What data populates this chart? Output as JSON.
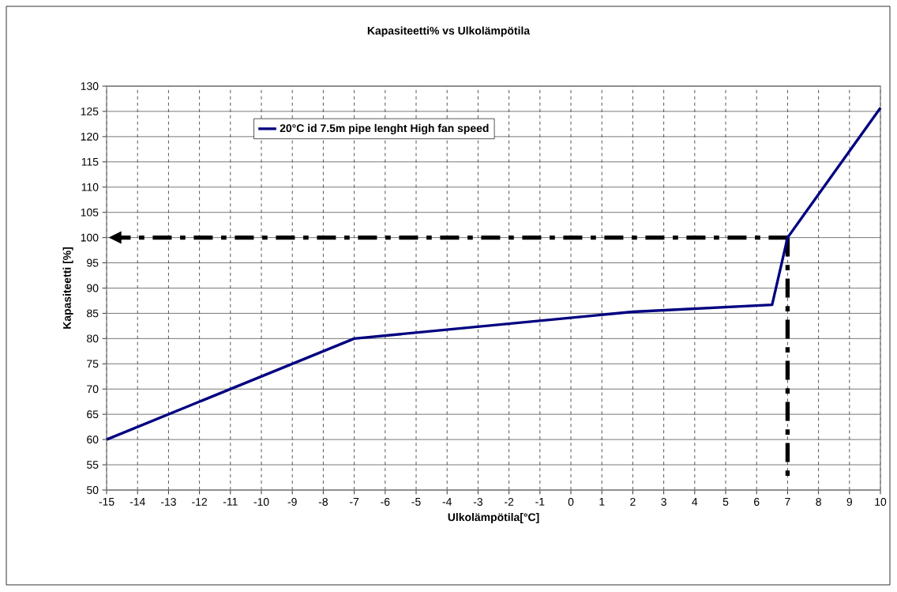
{
  "chart_data": {
    "type": "line",
    "title": "Kapasiteetti% vs Ulkolämpötila",
    "xlabel": "Ulkolämpötila[°C]",
    "ylabel": "Kapasiteetti [%]",
    "x": [
      -15,
      -7,
      2,
      6.5,
      7,
      10
    ],
    "series": [
      {
        "name": "20°C id 7.5m pipe lenght High fan speed",
        "color": "#000080",
        "values": [
          60,
          80,
          85.3,
          86.7,
          100,
          125.7
        ]
      }
    ],
    "xlim": [
      -15,
      10
    ],
    "xticks": [
      -15,
      -14,
      -13,
      -12,
      -11,
      -10,
      -9,
      -8,
      -7,
      -6,
      -5,
      -4,
      -3,
      -2,
      -1,
      0,
      1,
      2,
      3,
      4,
      5,
      6,
      7,
      8,
      9,
      10
    ],
    "ylim": [
      50,
      130
    ],
    "yticks": [
      50,
      55,
      60,
      65,
      70,
      75,
      80,
      85,
      90,
      95,
      100,
      105,
      110,
      115,
      120,
      125,
      130
    ],
    "ref_lines": [
      {
        "axis": "y",
        "value": 100,
        "color": "#000000"
      },
      {
        "axis": "x",
        "value": 7,
        "color": "#000000"
      }
    ],
    "grid": true,
    "legend": "top left",
    "marker": "none",
    "line_style": "solid"
  }
}
